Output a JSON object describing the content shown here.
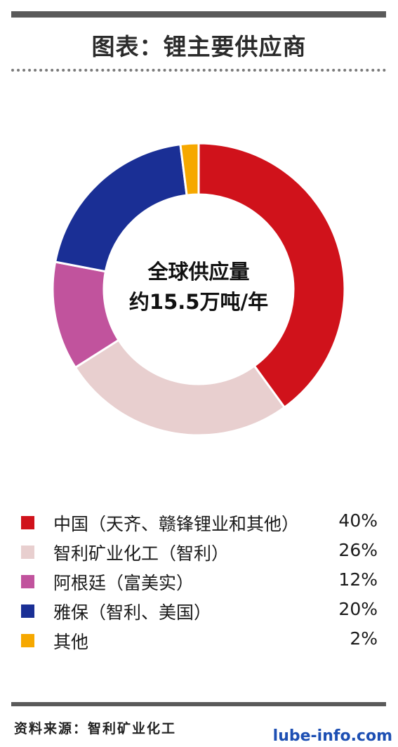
{
  "title": "图表：锂主要供应商",
  "source": "资料来源：智利矿业化工",
  "watermark": "lube-info.com",
  "center": {
    "line1": "全球供应量",
    "line2": "约15.5万吨/年"
  },
  "legend": [
    {
      "label": "中国（天齐、赣锋锂业和其他）",
      "value": "40%",
      "color": "#d0121b"
    },
    {
      "label": "智利矿业化工（智利）",
      "value": "26%",
      "color": "#e8cfcf"
    },
    {
      "label": "阿根廷（富美实）",
      "value": "12%",
      "color": "#c1539d"
    },
    {
      "label": "雅保（智利、美国）",
      "value": "20%",
      "color": "#1a2f95"
    },
    {
      "label": "其他",
      "value": "2%",
      "color": "#f6a800"
    }
  ],
  "chart_data": {
    "type": "pie",
    "title": "图表：锂主要供应商",
    "categories": [
      "中国（天齐、赣锋锂业和其他）",
      "智利矿业化工（智利）",
      "阿根廷（富美实）",
      "雅保（智利、美国）",
      "其他"
    ],
    "values": [
      40,
      26,
      12,
      20,
      2
    ],
    "colors": [
      "#d0121b",
      "#e8cfcf",
      "#c1539d",
      "#1a2f95",
      "#f6a800"
    ],
    "donut": true,
    "center_label": [
      "全球供应量",
      "约15.5万吨/年"
    ],
    "legend": "bottom"
  }
}
